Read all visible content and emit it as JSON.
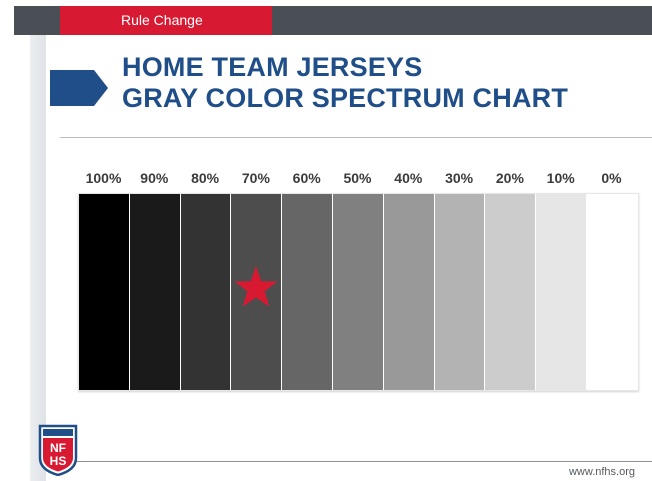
{
  "header": {
    "tab_label": "Rule Change"
  },
  "title": {
    "line1": "HOME TEAM JERSEYS",
    "line2": "GRAY COLOR SPECTRUM CHART"
  },
  "spectrum": {
    "labels": [
      "100%",
      "90%",
      "80%",
      "70%",
      "60%",
      "50%",
      "40%",
      "30%",
      "20%",
      "10%",
      "0%"
    ],
    "levels": [
      100,
      90,
      80,
      70,
      60,
      50,
      40,
      30,
      20,
      10,
      0
    ],
    "marked_level": "70%"
  },
  "logo": {
    "text": "NFHS"
  },
  "footer": {
    "url": "www.nfhs.org"
  },
  "colors": {
    "brand_red": "#d71a32",
    "brand_blue": "#1f4e88",
    "header_gray": "#4a4f56"
  }
}
